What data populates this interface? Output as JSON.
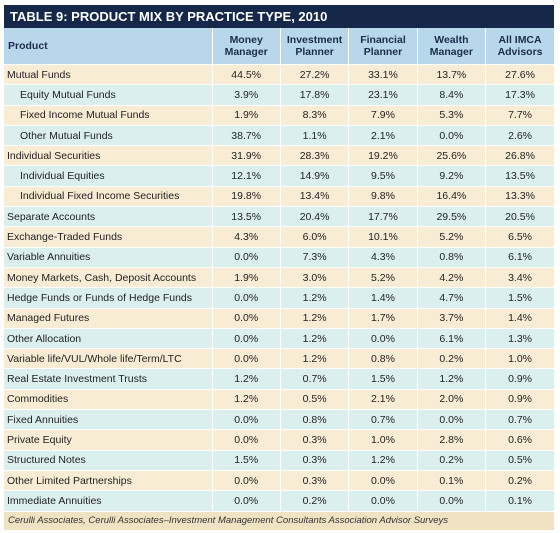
{
  "title": "TABLE 9: PRODUCT MIX BY PRACTICE TYPE, 2010",
  "table": {
    "header": [
      "Product",
      "Money Manager",
      "Investment Planner",
      "Financial Planner",
      "Wealth Manager",
      "All IMCA Advisors"
    ],
    "rows": [
      [
        "Mutual Funds",
        "44.5%",
        "27.2%",
        "33.1%",
        "13.7%",
        "27.6%"
      ],
      [
        "Equity Mutual Funds",
        "3.9%",
        "17.8%",
        "23.1%",
        "8.4%",
        "17.3%"
      ],
      [
        "Fixed Income Mutual Funds",
        "1.9%",
        "8.3%",
        "7.9%",
        "5.3%",
        "7.7%"
      ],
      [
        "Other Mutual Funds",
        "38.7%",
        "1.1%",
        "2.1%",
        "0.0%",
        "2.6%"
      ],
      [
        "Individual Securities",
        "31.9%",
        "28.3%",
        "19.2%",
        "25.6%",
        "26.8%"
      ],
      [
        "Individual Equities",
        "12.1%",
        "14.9%",
        "9.5%",
        "9.2%",
        "13.5%"
      ],
      [
        "Individual Fixed Income Securities",
        "19.8%",
        "13.4%",
        "9.8%",
        "16.4%",
        "13.3%"
      ],
      [
        "Separate Accounts",
        "13.5%",
        "20.4%",
        "17.7%",
        "29.5%",
        "20.5%"
      ],
      [
        "Exchange-Traded Funds",
        "4.3%",
        "6.0%",
        "10.1%",
        "5.2%",
        "6.5%"
      ],
      [
        "Variable Annuities",
        "0.0%",
        "7.3%",
        "4.3%",
        "0.8%",
        "6.1%"
      ],
      [
        "Money Markets, Cash, Deposit Accounts",
        "1.9%",
        "3.0%",
        "5.2%",
        "4.2%",
        "3.4%"
      ],
      [
        "Hedge Funds or Funds of Hedge Funds",
        "0.0%",
        "1.2%",
        "1.4%",
        "4.7%",
        "1.5%"
      ],
      [
        "Managed Futures",
        "0.0%",
        "1.2%",
        "1.7%",
        "3.7%",
        "1.4%"
      ],
      [
        "Other Allocation",
        "0.0%",
        "1.2%",
        "0.0%",
        "6.1%",
        "1.3%"
      ],
      [
        "Variable life/VUL/Whole life/Term/LTC",
        "0.0%",
        "1.2%",
        "0.8%",
        "0.2%",
        "1.0%"
      ],
      [
        "Real Estate Investment Trusts",
        "1.2%",
        "0.7%",
        "1.5%",
        "1.2%",
        "0.9%"
      ],
      [
        "Commodities",
        "1.2%",
        "0.5%",
        "2.1%",
        "2.0%",
        "0.9%"
      ],
      [
        "Fixed Annuities",
        "0.0%",
        "0.8%",
        "0.7%",
        "0.0%",
        "0.7%"
      ],
      [
        "Private Equity",
        "0.0%",
        "0.3%",
        "1.0%",
        "2.8%",
        "0.6%"
      ],
      [
        "Structured Notes",
        "1.5%",
        "0.3%",
        "1.2%",
        "0.2%",
        "0.5%"
      ],
      [
        "Other Limited Partnerships",
        "0.0%",
        "0.3%",
        "0.0%",
        "0.1%",
        "0.2%"
      ],
      [
        "Immediate Annuities",
        "0.0%",
        "0.2%",
        "0.0%",
        "0.0%",
        "0.1%"
      ]
    ]
  },
  "source": "Cerulli Associates, Cerulli Associates–Investment Management Consultants Association Advisor Surveys"
}
